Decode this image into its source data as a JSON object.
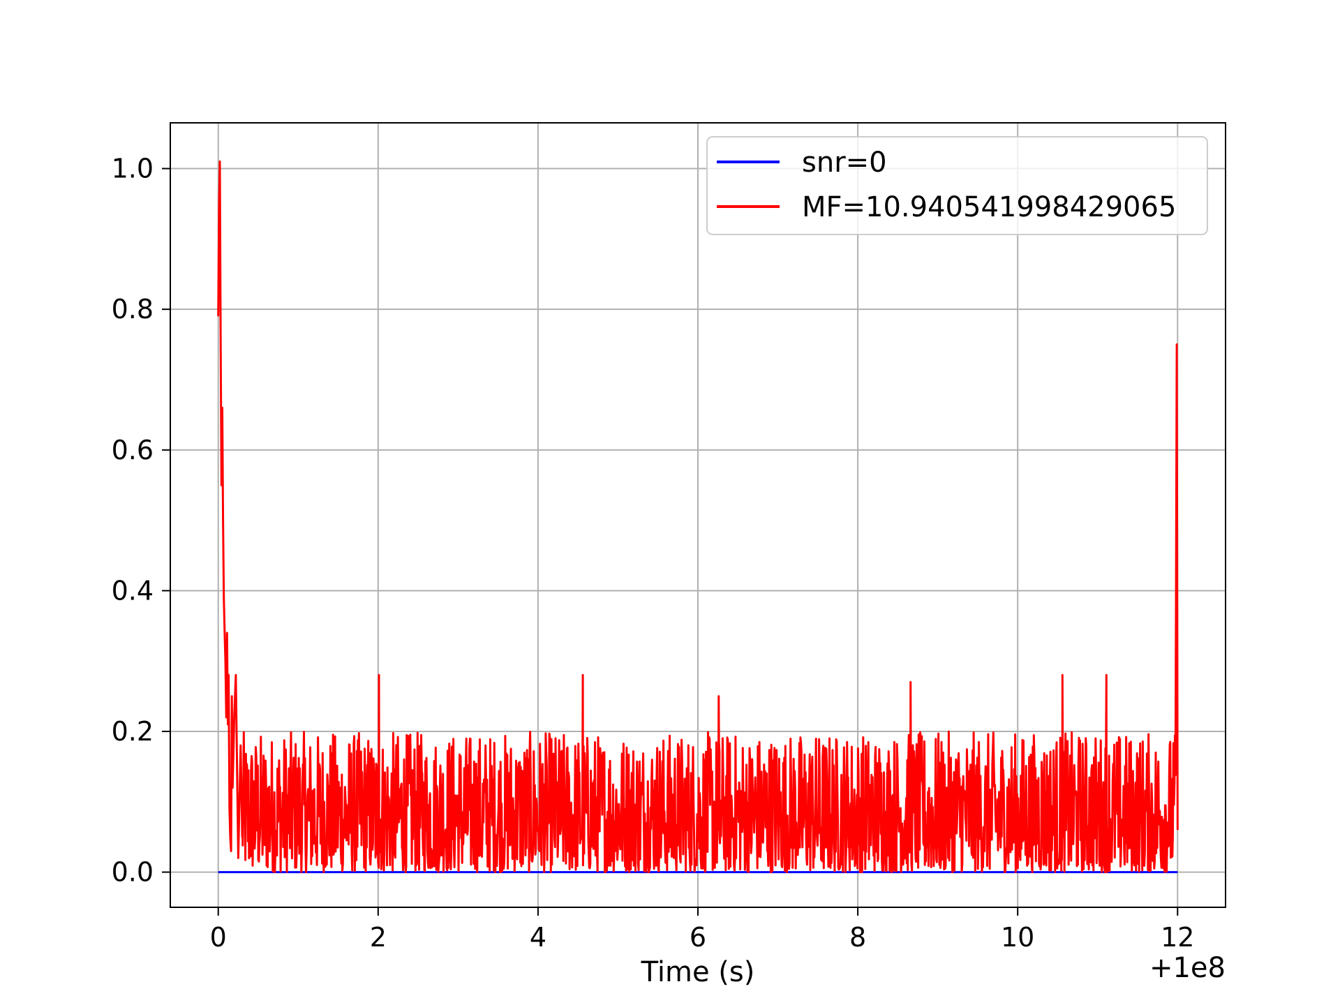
{
  "chart_data": {
    "type": "line",
    "title": "",
    "xlabel": "Time (s)",
    "ylabel": "",
    "x_offset_label": "+1e8",
    "xlim": [
      -0.6,
      12.6
    ],
    "ylim": [
      -0.05,
      1.065
    ],
    "xticks": [
      "0",
      "2",
      "4",
      "6",
      "8",
      "10",
      "12"
    ],
    "xtick_values": [
      0,
      2,
      4,
      6,
      8,
      10,
      12
    ],
    "yticks": [
      "0.0",
      "0.2",
      "0.4",
      "0.6",
      "0.8",
      "1.0"
    ],
    "ytick_values": [
      0.0,
      0.2,
      0.4,
      0.6,
      0.8,
      1.0
    ],
    "grid": true,
    "legend_position": "upper right",
    "series": [
      {
        "name": "snr=0",
        "color": "#0000ff",
        "x": [
          0,
          12
        ],
        "y": [
          0,
          0
        ]
      },
      {
        "name": "MF=10.940541998429065",
        "color": "#ff0000",
        "x": [
          0,
          0.01,
          0.02,
          0.03,
          0.04,
          0.05,
          0.06,
          0.07,
          0.08,
          0.09,
          0.1,
          0.11,
          0.12,
          0.13,
          0.14,
          0.15,
          0.16,
          0.17,
          0.18,
          0.2,
          0.22,
          0.25,
          0.28,
          0.3,
          2.0,
          2.01,
          2.02,
          4.55,
          4.56,
          4.57,
          6.25,
          6.26,
          6.27,
          8.65,
          8.66,
          8.67,
          10.55,
          10.56,
          10.57,
          11.1,
          11.11,
          11.12,
          11.98,
          11.99,
          12.0
        ],
        "y": [
          0.79,
          0.95,
          1.01,
          0.75,
          0.55,
          0.66,
          0.5,
          0.39,
          0.34,
          0.3,
          0.22,
          0.34,
          0.21,
          0.28,
          0.09,
          0.05,
          0.03,
          0.25,
          0.12,
          0.22,
          0.28,
          0.02,
          0.18,
          0.05,
          0.07,
          0.28,
          0.05,
          0.06,
          0.28,
          0.05,
          0.06,
          0.25,
          0.05,
          0.05,
          0.27,
          0.04,
          0.06,
          0.28,
          0.05,
          0.06,
          0.28,
          0.04,
          0.37,
          0.75,
          0.06
        ],
        "noise_band": {
          "x_start": 0.3,
          "x_end": 11.98,
          "mean": 0.08,
          "min": 0.0,
          "max": 0.2
        }
      }
    ]
  }
}
